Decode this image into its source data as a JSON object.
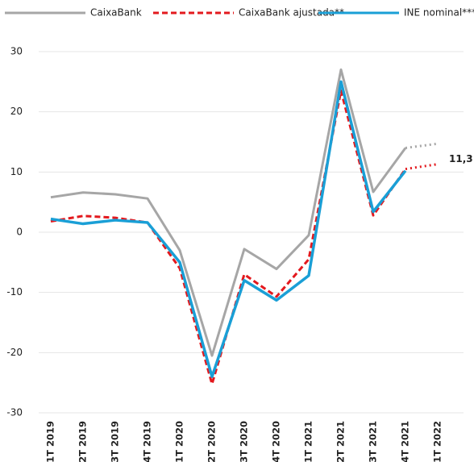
{
  "chart_data": {
    "type": "line",
    "categories": [
      "1T 2019",
      "2T 2019",
      "3T 2019",
      "4T 2019",
      "1T 2020",
      "2T 2020",
      "3T 2020",
      "4T 2020",
      "1T 2021",
      "2T 2021",
      "3T 2021",
      "4T 2021",
      "1T 2022"
    ],
    "series": [
      {
        "name": "CaixaBank",
        "color": "#a6a6a6",
        "dash": "solid",
        "projection": true,
        "values": [
          5.8,
          6.6,
          6.3,
          5.6,
          -3,
          -20.5,
          -2.8,
          -6.1,
          -0.5,
          27,
          6.7,
          14,
          14.7
        ]
      },
      {
        "name": "CaixaBank ajustada**",
        "color": "#e3191e",
        "dash": "dashed",
        "projection": true,
        "values": [
          1.8,
          2.7,
          2.4,
          1.6,
          -6,
          -25.2,
          -7,
          -10.7,
          -4.5,
          23.5,
          2.8,
          10.5,
          11.3
        ],
        "value_labels": [
          null,
          null,
          null,
          null,
          null,
          null,
          null,
          null,
          null,
          null,
          null,
          null,
          "11,3"
        ]
      },
      {
        "name": "INE nominal***",
        "color": "#1a9fd6",
        "dash": "solid",
        "projection": false,
        "values": [
          2.2,
          1.4,
          2.0,
          1.6,
          -5,
          -24,
          -8,
          -11.3,
          -7.2,
          25,
          3.4,
          10.2,
          null
        ]
      }
    ],
    "ylim": [
      -30,
      30
    ],
    "yticks": [
      -30,
      -20,
      -10,
      0,
      10,
      20,
      30
    ],
    "grid": true,
    "legend": "top"
  }
}
